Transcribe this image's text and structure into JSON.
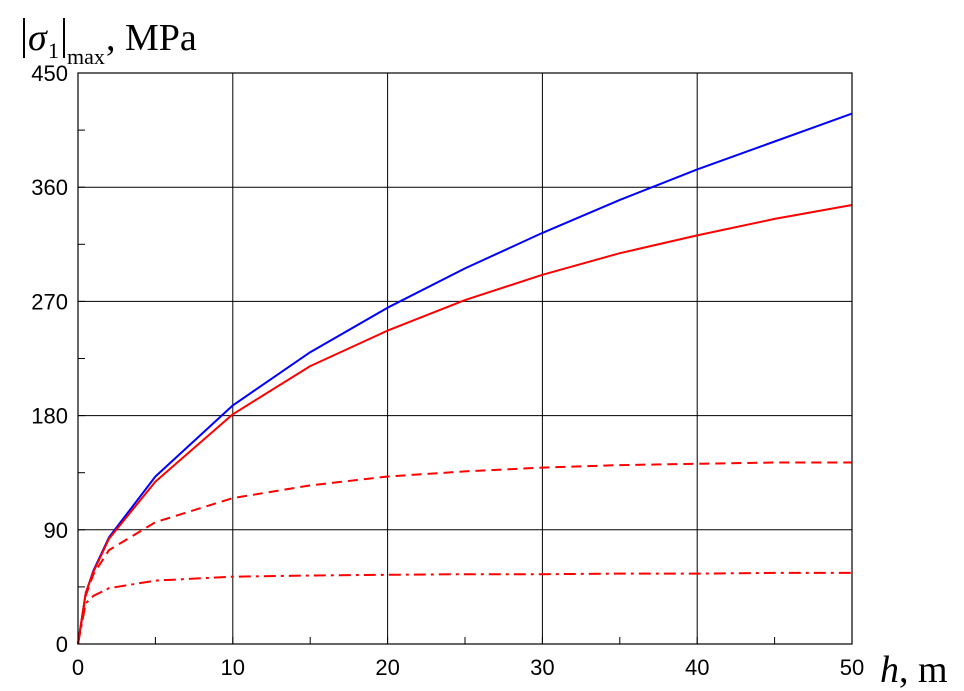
{
  "chart_data": {
    "type": "line",
    "xlabel": {
      "var": "h",
      "unit": ", m"
    },
    "ylabel": {
      "sigma": "σ",
      "sub1": "1",
      "submax": "max",
      "unit": ", MPa"
    },
    "xlim": [
      0,
      50
    ],
    "ylim": [
      0,
      450
    ],
    "x_ticks": [
      0,
      10,
      20,
      30,
      40,
      50
    ],
    "y_ticks": [
      0,
      90,
      180,
      270,
      360,
      450
    ],
    "x_minor_step": 5,
    "y_minor_step": 45,
    "grid": true,
    "series": [
      {
        "color": "#0000ff",
        "dash": "solid",
        "x": [
          0,
          0.5,
          1,
          2,
          5,
          10,
          15,
          20,
          25,
          30,
          35,
          40,
          45,
          50
        ],
        "y": [
          0,
          40,
          58,
          84,
          132,
          188,
          230,
          265,
          296,
          324,
          350,
          374,
          396,
          418
        ]
      },
      {
        "color": "#ff0000",
        "dash": "solid",
        "x": [
          0,
          0.5,
          1,
          2,
          5,
          10,
          15,
          20,
          25,
          30,
          35,
          40,
          45,
          50
        ],
        "y": [
          0,
          40,
          57,
          83,
          128,
          181,
          219,
          247,
          271,
          291,
          308,
          322,
          335,
          346
        ]
      },
      {
        "color": "#ff0000",
        "dash": "dashed",
        "x": [
          0,
          0.5,
          1,
          2,
          5,
          10,
          15,
          20,
          25,
          30,
          35,
          40,
          45,
          50
        ],
        "y": [
          0,
          38,
          55,
          74,
          96,
          115,
          125,
          132,
          136,
          139,
          141,
          142,
          143,
          143
        ]
      },
      {
        "color": "#ff0000",
        "dash": "dashdot",
        "x": [
          0,
          0.5,
          1,
          2,
          5,
          10,
          15,
          20,
          25,
          30,
          35,
          40,
          45,
          50
        ],
        "y": [
          0,
          32,
          38,
          44,
          50,
          53,
          54,
          54.5,
          55,
          55,
          55.5,
          55.5,
          56,
          56
        ]
      }
    ]
  }
}
